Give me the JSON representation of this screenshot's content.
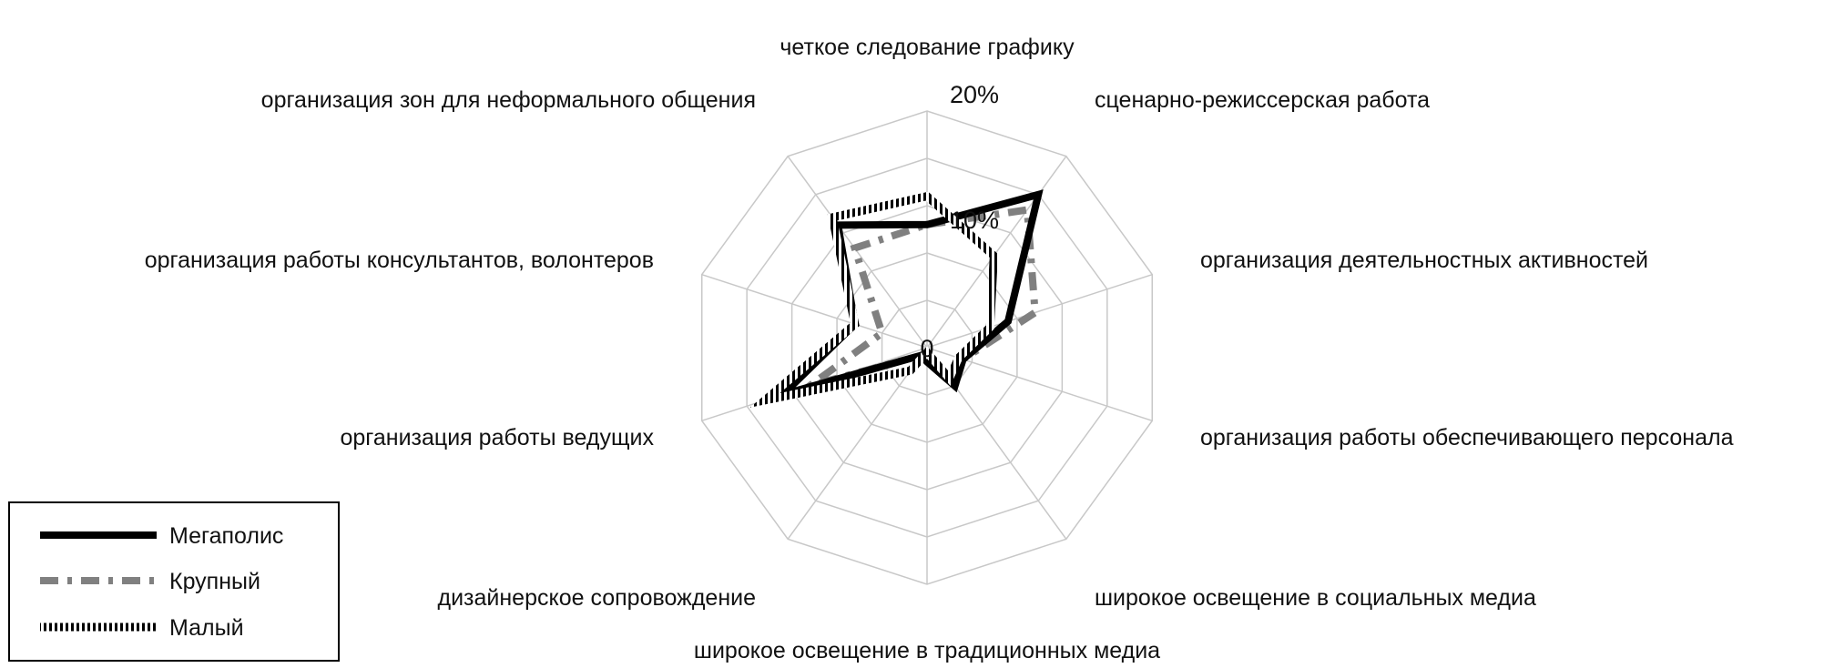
{
  "chart_data": {
    "type": "radar",
    "title": "",
    "categories": [
      "четкое следование графику",
      "сценарно-режиссерская работа",
      "организация деятельностных активностей",
      "организация работы обеспечивающего персонала",
      "широкое освещение в социальных медиа",
      "широкое освещение в традиционных медиа",
      "дизайнерское сопровождение",
      "организация работы ведущих",
      "организация работы консультантов, волонтеров",
      "организация зон для неформального общения"
    ],
    "tick_labels": [
      "0",
      "10%",
      "20%"
    ],
    "rlim": [
      0,
      25
    ],
    "grid": true,
    "legend_position": "bottom-left",
    "series": [
      {
        "name": "Мегаполис",
        "style": "solid",
        "color": "#000000",
        "values": [
          13,
          20,
          9,
          4,
          5,
          1.5,
          1,
          16,
          8,
          16
        ]
      },
      {
        "name": "Крупный",
        "style": "dash-dot",
        "color": "#808080",
        "values": [
          13,
          18,
          12,
          4,
          5,
          1.5,
          1,
          13,
          5,
          13
        ]
      },
      {
        "name": "Малый",
        "style": "dotted",
        "color": "#000000",
        "values": [
          16,
          12,
          7,
          3.5,
          4,
          0.5,
          3,
          18,
          8,
          17
        ]
      }
    ]
  }
}
